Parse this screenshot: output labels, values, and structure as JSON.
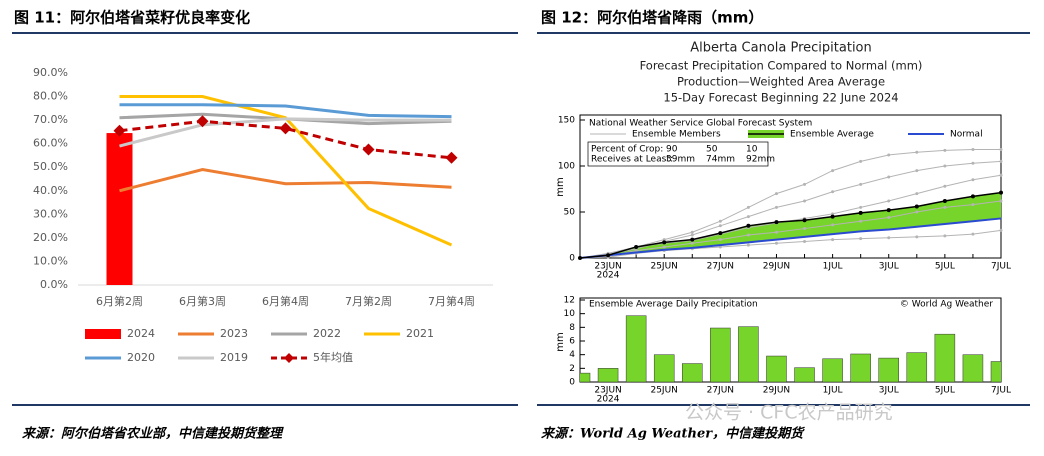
{
  "figures": [
    {
      "title": "图 11：阿尔伯塔省菜籽优良率变化",
      "source": "来源：阿尔伯塔省农业部，中信建投期货整理"
    },
    {
      "title": "图 12：阿尔伯塔省降雨（mm）",
      "source": "来源：World Ag Weather，中信建投期货"
    }
  ],
  "watermark": "公众号 · CFC农产品研究",
  "chart_data": [
    {
      "type": "line",
      "categories": [
        "6月第2周",
        "6月第3周",
        "6月第4周",
        "7月第2周",
        "7月第4周"
      ],
      "ylim": [
        0,
        90
      ],
      "yticks": [
        {
          "value": 0,
          "label": "0.0%"
        },
        {
          "value": 10,
          "label": "10.0%"
        },
        {
          "value": 20,
          "label": "20.0%"
        },
        {
          "value": 30,
          "label": "30.0%"
        },
        {
          "value": 40,
          "label": "40.0%"
        },
        {
          "value": 50,
          "label": "50.0%"
        },
        {
          "value": 60,
          "label": "60.0%"
        },
        {
          "value": 70,
          "label": "70.0%"
        },
        {
          "value": 80,
          "label": "80.0%"
        },
        {
          "value": 90,
          "label": "90.0%"
        }
      ],
      "grid": false,
      "series": [
        {
          "name": "2024",
          "type": "bar",
          "color": "#ff0000",
          "values": [
            64.5,
            null,
            null,
            null,
            null
          ]
        },
        {
          "name": "2023",
          "color": "#ed7d31",
          "values": [
            40,
            49,
            43,
            43.5,
            41.5
          ]
        },
        {
          "name": "2022",
          "color": "#a5a5a5",
          "values": [
            71,
            72.5,
            70.5,
            68.5,
            69.5
          ]
        },
        {
          "name": "2021",
          "color": "#ffc000",
          "values": [
            80,
            80,
            71,
            32.5,
            17
          ]
        },
        {
          "name": "2020",
          "color": "#5b9bd5",
          "values": [
            76.5,
            76.5,
            76,
            72,
            71.5
          ]
        },
        {
          "name": "2019",
          "color": "#c9c9c9",
          "values": [
            59,
            68,
            70.5,
            70,
            70
          ]
        },
        {
          "name": "5年均值",
          "color": "#c00000",
          "dash": true,
          "marker": "diamond",
          "values": [
            65.5,
            69.5,
            66.5,
            57.5,
            54
          ]
        }
      ]
    },
    {
      "type": "line",
      "title": "Alberta Canola Precipitation",
      "subtitle": [
        "Forecast Precipitation Compared to Normal (mm)",
        "Production—Weighted Area Average",
        "15-Day Forecast Beginning 22 June 2024"
      ],
      "legend_title": "National Weather Service Global Forecast System",
      "crop_table": [
        [
          "Percent of Crop:",
          "90",
          "50",
          "10"
        ],
        [
          "Receives at Least:",
          "39mm",
          "74mm",
          "92mm"
        ]
      ],
      "ylabel": "mm",
      "xyear": "2024",
      "categories": [
        null,
        "23JUN",
        null,
        "25JUN",
        null,
        "27JUN",
        null,
        "29JUN",
        null,
        "1JUL",
        null,
        "3JUL",
        null,
        "5JUL",
        null,
        "7JUL"
      ],
      "ylim": [
        0,
        150
      ],
      "yticks": [
        0,
        50,
        100,
        150
      ],
      "series": [
        {
          "name": "Ensemble Members",
          "color": "#b4b4b4",
          "members": [
            [
              0,
              5,
              12,
              20,
              28,
              40,
              55,
              70,
              80,
              95,
              105,
              112,
              115,
              117,
              118,
              118
            ],
            [
              0,
              4,
              10,
              18,
              25,
              35,
              45,
              55,
              62,
              72,
              80,
              88,
              95,
              100,
              103,
              105
            ],
            [
              0,
              3,
              12,
              16,
              19,
              26,
              33,
              38,
              43,
              48,
              55,
              62,
              70,
              78,
              85,
              90
            ],
            [
              0,
              2,
              8,
              12,
              16,
              20,
              25,
              28,
              32,
              36,
              40,
              44,
              50,
              55,
              58,
              62
            ],
            [
              0,
              1,
              5,
              8,
              10,
              12,
              14,
              16,
              18,
              20,
              21,
              22,
              23,
              24,
              26,
              30
            ]
          ]
        },
        {
          "name": "Ensemble Average",
          "color": "#77d42a",
          "values": [
            0,
            3,
            12,
            17,
            20,
            27,
            35,
            39,
            41,
            45,
            49,
            52,
            56,
            62,
            67,
            71
          ]
        },
        {
          "name": "Normal",
          "color": "#2a4bd0",
          "values": [
            0,
            3,
            6,
            9,
            11,
            14,
            17,
            20,
            23,
            26,
            29,
            31,
            34,
            37,
            40,
            43
          ]
        }
      ]
    },
    {
      "type": "bar",
      "title": "Ensemble Average Daily Precipitation",
      "credit": "© World Ag Weather",
      "ylabel": "mm",
      "xyear": "2024",
      "categories": [
        null,
        "23JUN",
        null,
        "25JUN",
        null,
        "27JUN",
        null,
        "29JUN",
        null,
        "1JUL",
        null,
        "3JUL",
        null,
        "5JUL",
        null,
        "7JUL"
      ],
      "ylim": [
        0,
        12
      ],
      "yticks": [
        0,
        2,
        4,
        6,
        8,
        10,
        12
      ],
      "color": "#77d42a",
      "values": [
        1.3,
        2,
        9.7,
        4,
        2.7,
        7.9,
        8.1,
        3.8,
        2.1,
        3.4,
        4.1,
        3.5,
        4.3,
        7,
        4,
        3
      ]
    }
  ]
}
